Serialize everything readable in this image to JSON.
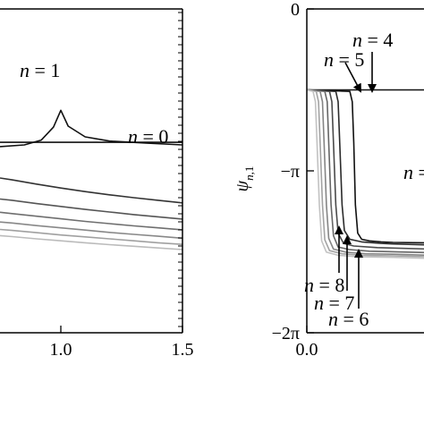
{
  "chart_data": [
    {
      "type": "line",
      "title": "",
      "xlabel": "",
      "ylabel": "",
      "xlim": [
        0.75,
        1.5
      ],
      "xticks": [
        {
          "value": 1.0,
          "label": "1.0"
        },
        {
          "value": 1.5,
          "label": "1.5"
        }
      ],
      "ylim": [
        0,
        1
      ],
      "series": [
        {
          "x": [
            0.75,
            0.85,
            0.92,
            0.97,
            1.0,
            1.03,
            1.1,
            1.2,
            1.35,
            1.5
          ],
          "y": [
            0.575,
            0.58,
            0.595,
            0.635,
            0.687,
            0.638,
            0.605,
            0.592,
            0.586,
            0.58
          ],
          "color": "#111111"
        },
        {
          "x": [
            0.75,
            1.5
          ],
          "y": [
            0.588,
            0.588
          ],
          "color": "#111111"
        },
        {
          "x": [
            0.75,
            0.8,
            0.9,
            1.0,
            1.1,
            1.2,
            1.3,
            1.4,
            1.5
          ],
          "y": [
            0.478,
            0.472,
            0.459,
            0.447,
            0.436,
            0.426,
            0.417,
            0.409,
            0.401
          ],
          "color": "#333333"
        },
        {
          "x": [
            0.75,
            0.8,
            0.9,
            1.0,
            1.1,
            1.2,
            1.3,
            1.4,
            1.5
          ],
          "y": [
            0.413,
            0.409,
            0.399,
            0.39,
            0.381,
            0.373,
            0.365,
            0.358,
            0.351
          ],
          "color": "#555555"
        },
        {
          "x": [
            0.75,
            0.8,
            0.9,
            1.0,
            1.1,
            1.2,
            1.3,
            1.4,
            1.5
          ],
          "y": [
            0.372,
            0.368,
            0.36,
            0.352,
            0.344,
            0.337,
            0.33,
            0.324,
            0.318
          ],
          "color": "#6f6f6f"
        },
        {
          "x": [
            0.75,
            0.8,
            0.9,
            1.0,
            1.1,
            1.2,
            1.3,
            1.4,
            1.5
          ],
          "y": [
            0.342,
            0.339,
            0.331,
            0.324,
            0.317,
            0.31,
            0.304,
            0.298,
            0.292
          ],
          "color": "#888888"
        },
        {
          "x": [
            0.75,
            0.8,
            0.9,
            1.0,
            1.1,
            1.2,
            1.3,
            1.4,
            1.5
          ],
          "y": [
            0.319,
            0.316,
            0.309,
            0.302,
            0.296,
            0.29,
            0.284,
            0.278,
            0.273
          ],
          "color": "#a0a0a0"
        },
        {
          "x": [
            0.75,
            0.8,
            0.9,
            1.0,
            1.1,
            1.2,
            1.3,
            1.4,
            1.5
          ],
          "y": [
            0.3,
            0.297,
            0.29,
            0.284,
            0.278,
            0.272,
            0.267,
            0.262,
            0.257
          ],
          "color": "#bbbbbb"
        }
      ],
      "annotations": [
        {
          "var": "n",
          "text": " = 1",
          "x": 1.0,
          "y": 0.76
        },
        {
          "var": "n",
          "text": " = 0",
          "x": 1.34,
          "y": 0.62
        }
      ]
    },
    {
      "type": "line",
      "title": "",
      "xlabel": "",
      "ylabel": "ψn,1",
      "xlim": [
        0.0,
        1.6
      ],
      "xticks": [
        {
          "value": 0.0,
          "label": "0.0"
        }
      ],
      "ylim": [
        -6.2832,
        0
      ],
      "yticks": [
        {
          "value": 0,
          "label": "0"
        },
        {
          "value": -3.1416,
          "label": "−π"
        },
        {
          "value": -6.2832,
          "label": "−2π"
        }
      ],
      "series": [
        {
          "x": [
            0.0,
            1.6
          ],
          "y": [
            -1.571,
            -1.571
          ],
          "color": "#111111"
        },
        {
          "x": [
            0.0,
            0.55,
            0.58,
            0.6,
            0.62,
            0.65,
            0.7,
            0.8,
            0.95,
            1.1,
            1.6
          ],
          "y": [
            -1.571,
            -1.6,
            -1.8,
            -2.6,
            -3.8,
            -4.35,
            -4.47,
            -4.5,
            -4.52,
            -4.53,
            -4.54
          ],
          "color": "#111111"
        },
        {
          "x": [
            0.0,
            0.37,
            0.4,
            0.42,
            0.45,
            0.48,
            0.55,
            0.7,
            0.95,
            1.1,
            1.6
          ],
          "y": [
            -1.571,
            -1.6,
            -1.8,
            -2.6,
            -3.8,
            -4.3,
            -4.47,
            -4.52,
            -4.55,
            -4.56,
            -4.58
          ],
          "color": "#2b2b2b"
        },
        {
          "x": [
            0.0,
            0.29,
            0.32,
            0.34,
            0.37,
            0.4,
            0.47,
            0.6,
            0.9,
            1.1,
            1.6
          ],
          "y": [
            -1.571,
            -1.6,
            -1.8,
            -2.6,
            -3.8,
            -4.35,
            -4.55,
            -4.6,
            -4.63,
            -4.64,
            -4.66
          ],
          "color": "#4a4a4a"
        },
        {
          "x": [
            0.0,
            0.23,
            0.26,
            0.28,
            0.31,
            0.34,
            0.4,
            0.55,
            0.8,
            1.1,
            1.6
          ],
          "y": [
            -1.571,
            -1.6,
            -1.8,
            -2.6,
            -3.8,
            -4.4,
            -4.62,
            -4.67,
            -4.7,
            -4.71,
            -4.73
          ],
          "color": "#666666"
        },
        {
          "x": [
            0.0,
            0.17,
            0.2,
            0.22,
            0.25,
            0.28,
            0.34,
            0.5,
            0.75,
            1.1,
            1.6
          ],
          "y": [
            -1.571,
            -1.6,
            -1.8,
            -2.6,
            -3.8,
            -4.45,
            -4.66,
            -4.72,
            -4.75,
            -4.76,
            -4.78
          ],
          "color": "#858585"
        },
        {
          "x": [
            0.0,
            0.12,
            0.15,
            0.17,
            0.2,
            0.23,
            0.29,
            0.45,
            0.7,
            1.1,
            1.6
          ],
          "y": [
            -1.571,
            -1.6,
            -1.8,
            -2.6,
            -3.8,
            -4.48,
            -4.69,
            -4.75,
            -4.78,
            -4.79,
            -4.81
          ],
          "color": "#a3a3a3"
        },
        {
          "x": [
            0.0,
            0.08,
            0.11,
            0.13,
            0.16,
            0.19,
            0.25,
            0.4,
            0.65,
            1.1,
            1.6
          ],
          "y": [
            -1.571,
            -1.6,
            -1.8,
            -2.6,
            -3.8,
            -4.5,
            -4.72,
            -4.78,
            -4.81,
            -4.82,
            -4.84
          ],
          "color": "#c2c2c2"
        }
      ],
      "annotations": [
        {
          "var": "n",
          "text": " = 4"
        },
        {
          "var": "n",
          "text": " = 5"
        },
        {
          "var": "n",
          "text": " = 8"
        },
        {
          "var": "n",
          "text": " = 7"
        },
        {
          "var": "n",
          "text": " = 6"
        },
        {
          "var": "n",
          "text": " ="
        }
      ]
    }
  ]
}
